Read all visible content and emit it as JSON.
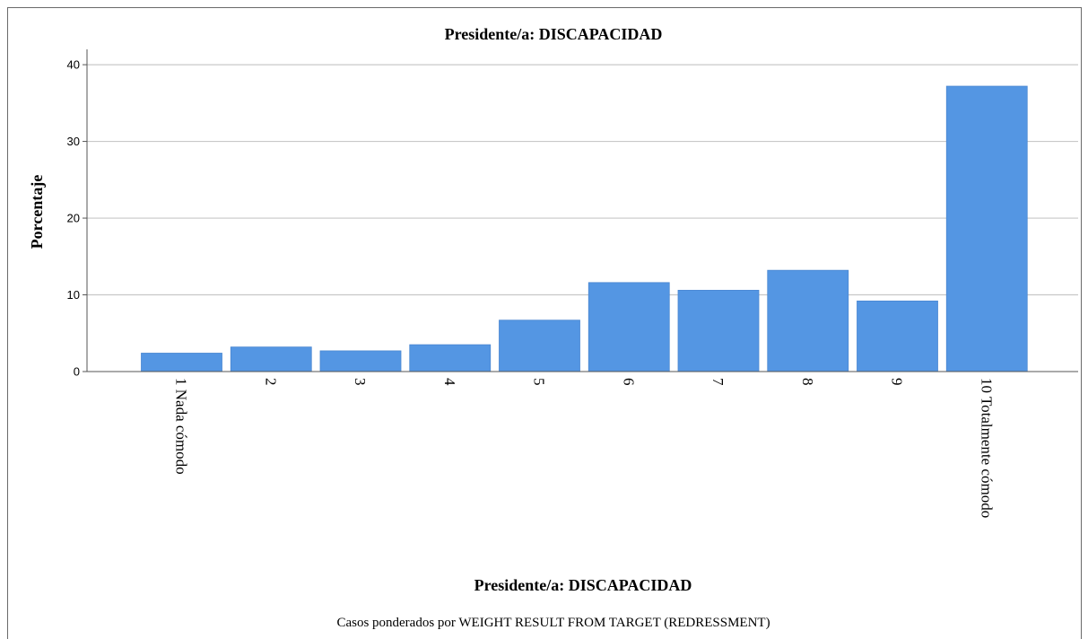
{
  "chart_data": {
    "type": "bar",
    "title": "Presidente/a: DISCAPACIDAD",
    "xlabel": "Presidente/a: DISCAPACIDAD",
    "ylabel": "Porcentaje",
    "footnote": "Casos ponderados por WEIGHT RESULT FROM TARGET (REDRESSMENT)",
    "categories": [
      "1 Nada cómodo",
      "2",
      "3",
      "4",
      "5",
      "6",
      "7",
      "8",
      "9",
      "10 Totalmente cómodo"
    ],
    "values": [
      2.4,
      3.2,
      2.7,
      3.5,
      6.7,
      11.6,
      10.6,
      13.2,
      9.2,
      37.2
    ],
    "ylim": [
      0,
      42
    ],
    "yticks": [
      0,
      10,
      20,
      30,
      40
    ],
    "grid": true,
    "bar_color": "#5496e3"
  }
}
